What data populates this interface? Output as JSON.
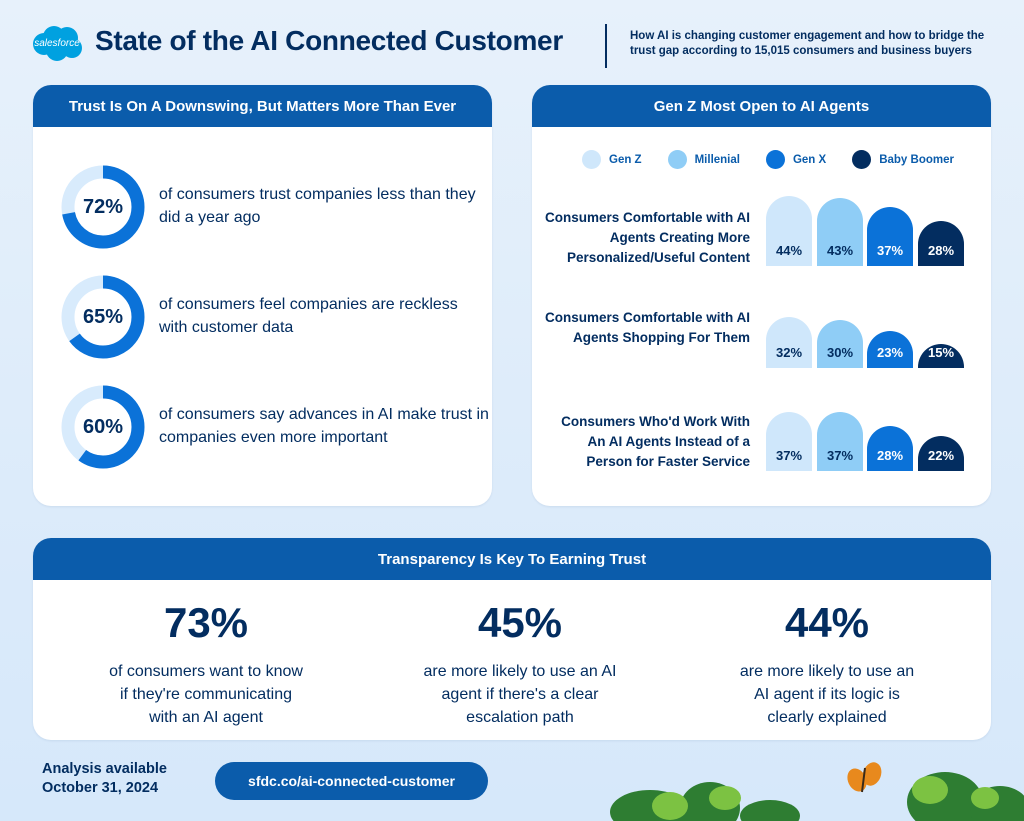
{
  "header": {
    "brand": "salesforce",
    "title": "State of the AI Connected Customer",
    "subtitle": "How AI is changing customer engagement and how to bridge the trust gap according to 15,015 consumers and business buyers"
  },
  "trust_card": {
    "heading": "Trust Is On A Downswing, But Matters More Than Ever",
    "items": [
      {
        "value": "72%",
        "pct": 72,
        "text": "of consumers trust companies less than they did a year ago"
      },
      {
        "value": "65%",
        "pct": 65,
        "text": "of consumers feel companies are reckless with customer data"
      },
      {
        "value": "60%",
        "pct": 60,
        "text": "of consumers say advances in AI make trust in companies even more important"
      }
    ]
  },
  "genz_card": {
    "heading": "Gen Z Most Open to AI Agents"
  },
  "chart_data": {
    "type": "bar",
    "legend_position": "top",
    "categories": [
      "Consumers Comfortable with AI Agents Creating More Personalized/Useful Content",
      "Consumers  Comfortable with AI Agents Shopping For Them",
      "Consumers Who'd Work With An AI Agents Instead of a Person for Faster Service"
    ],
    "series": [
      {
        "name": "Gen Z",
        "color": "#cfe7fb",
        "values": [
          44,
          32,
          37
        ]
      },
      {
        "name": "Millenial",
        "color": "#8fcdf6",
        "values": [
          43,
          30,
          37
        ]
      },
      {
        "name": "Gen X",
        "color": "#0b72d8",
        "values": [
          37,
          23,
          28
        ]
      },
      {
        "name": "Baby Boomer",
        "color": "#032d60",
        "values": [
          28,
          15,
          22
        ]
      }
    ],
    "unit": "%"
  },
  "transparency_card": {
    "heading": "Transparency Is Key To Earning Trust",
    "stats": [
      {
        "value": "73%",
        "text": "of consumers want to know if they're communicating with an AI agent"
      },
      {
        "value": "45%",
        "text": "are more likely to use an AI agent if there's a clear escalation path"
      },
      {
        "value": "44%",
        "text": "are more likely to use an AI agent if its logic is clearly explained"
      }
    ]
  },
  "footer": {
    "availability_line1": "Analysis available",
    "availability_line2": "October 31, 2024",
    "link": "sfdc.co/ai-connected-customer"
  },
  "colors": {
    "navy": "#032d60",
    "brand_blue": "#0b5cab",
    "donut_track": "#d8ebfc",
    "donut_fill": "#0b72d8"
  }
}
